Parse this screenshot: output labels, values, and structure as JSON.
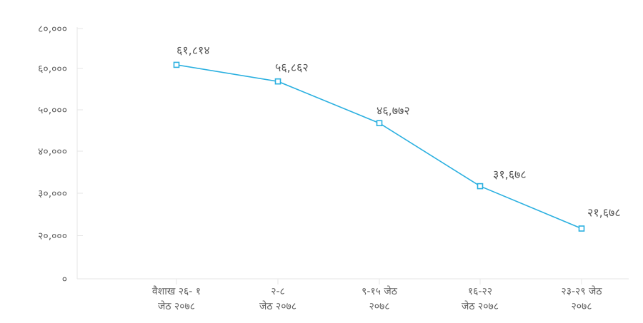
{
  "chart_data": {
    "type": "line",
    "title": "",
    "xlabel": "",
    "ylabel": "",
    "ylim": [
      0,
      80000
    ],
    "y_ticks": [
      {
        "value": 0,
        "label": "०"
      },
      {
        "value": 20000,
        "label": "२०,०००"
      },
      {
        "value": 30000,
        "label": "३०,०००"
      },
      {
        "value": 40000,
        "label": "४०,०००"
      },
      {
        "value": 50000,
        "label": "५०,०००"
      },
      {
        "value": 60000,
        "label": "६०,०००"
      },
      {
        "value": 80000,
        "label": "८०,०००"
      }
    ],
    "categories": [
      {
        "line1": "वैशाख २६- १",
        "line2": "जेठ २०७८"
      },
      {
        "line1": "२-८",
        "line2": "जेठ २०७८"
      },
      {
        "line1": "९-१५ जेठ",
        "line2": "२०७८"
      },
      {
        "line1": "१६-२२",
        "line2": "जेठ २०७८"
      },
      {
        "line1": "२३-२९ जेठ",
        "line2": "२०७८"
      }
    ],
    "series": [
      {
        "values": [
          61814,
          56862,
          46772,
          31678,
          21678
        ],
        "labels": [
          "६१,८१४",
          "५६,८६२",
          "४६,७७२",
          "३१,६७८",
          "२१,६७८"
        ],
        "color": "#2bb0e0"
      }
    ],
    "grid": false,
    "legend": "none"
  }
}
